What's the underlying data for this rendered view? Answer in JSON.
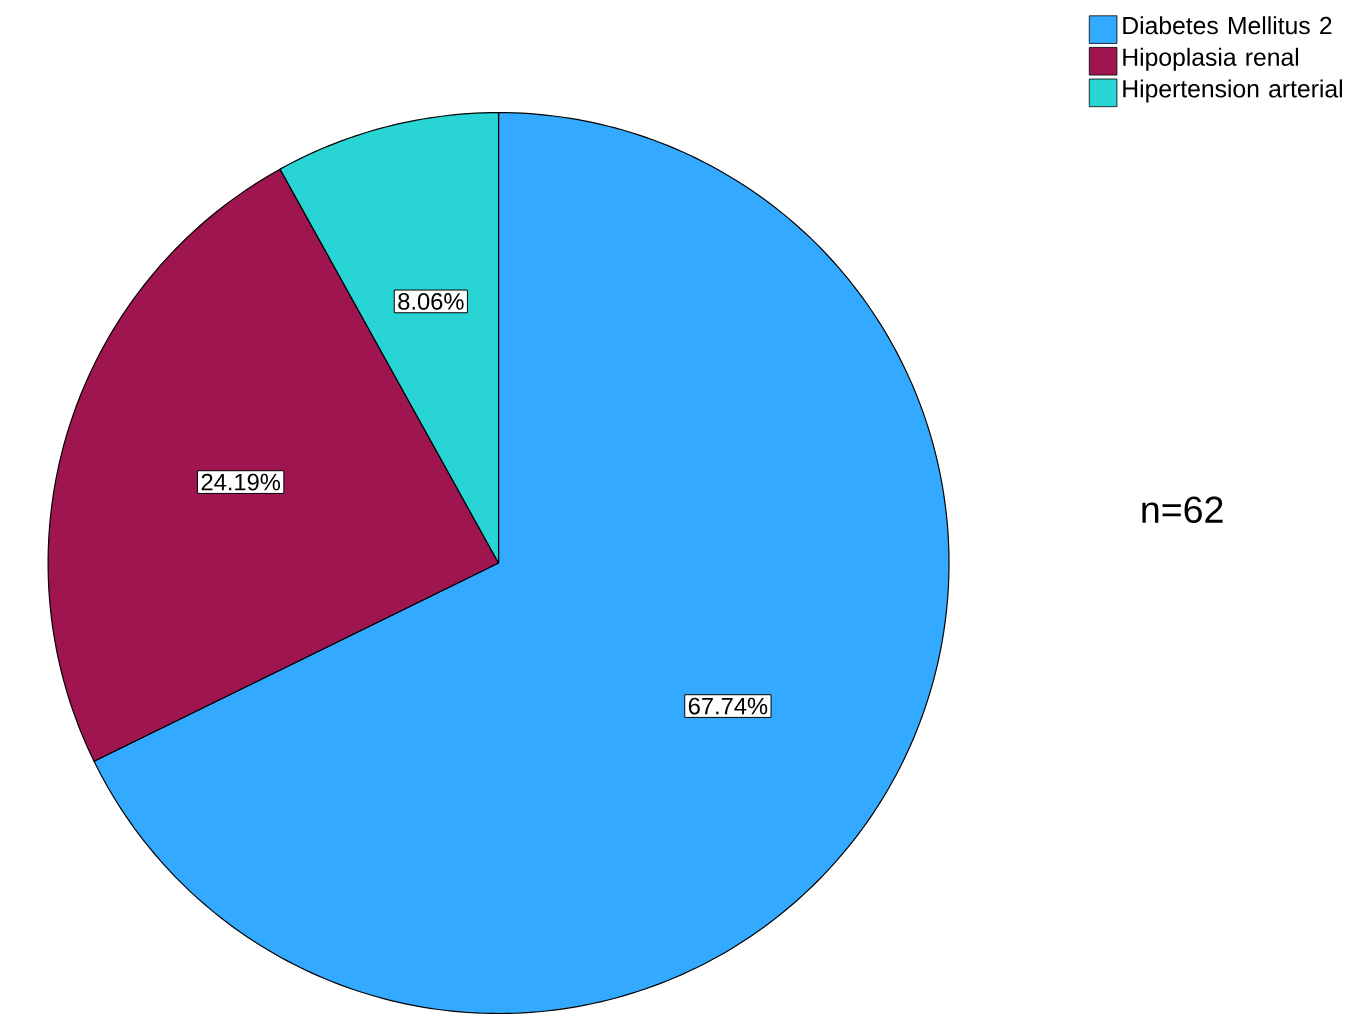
{
  "chart_data": {
    "type": "pie",
    "categories": [
      "Diabetes Mellitus 2",
      "Hipoplasia renal",
      "Hipertension arterial"
    ],
    "values": [
      67.74,
      24.19,
      8.06
    ],
    "value_labels": [
      "67.74%",
      "24.19%",
      "8.06%"
    ],
    "colors": [
      "#33aaff",
      "#9e1550",
      "#29d4d4"
    ],
    "legend": "top right",
    "annotations": [
      "n=62"
    ]
  }
}
